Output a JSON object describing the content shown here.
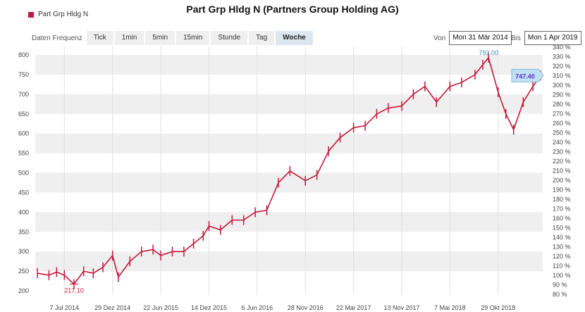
{
  "title": "Part Grp Hldg N (Partners Group Holding AG)",
  "legend": {
    "label": "Part Grp Hldg N"
  },
  "toolbar": {
    "label": "Daten Frequenz",
    "buttons": [
      "Tick",
      "1min",
      "5min",
      "15min",
      "Stunde",
      "Tag",
      "Woche"
    ],
    "active": "Woche"
  },
  "range": {
    "from_label": "Von",
    "from_value": "Mon 31 Mär 2014",
    "to_label": "Bis",
    "to_value": "Mon 1 Apr 2019"
  },
  "colors": {
    "series": "#c3173a",
    "max_label": "#3b8fc0",
    "min_label": "#c3173a",
    "last_box": "#bfe0f5",
    "last_text": "#5b2fc0"
  },
  "chart_data": {
    "type": "line",
    "x": [
      "2014-03-31",
      "2014-05-12",
      "2014-06-09",
      "2014-07-07",
      "2014-08-11",
      "2014-09-15",
      "2014-10-20",
      "2014-11-24",
      "2014-12-29",
      "2015-01-19",
      "2015-03-02",
      "2015-04-13",
      "2015-05-25",
      "2015-06-22",
      "2015-08-03",
      "2015-09-14",
      "2015-10-19",
      "2015-11-23",
      "2015-12-14",
      "2016-01-25",
      "2016-03-07",
      "2016-04-18",
      "2016-05-30",
      "2016-07-11",
      "2016-08-22",
      "2016-10-03",
      "2016-11-28",
      "2017-01-09",
      "2017-02-20",
      "2017-04-03",
      "2017-05-22",
      "2017-07-03",
      "2017-08-14",
      "2017-09-25",
      "2017-11-13",
      "2017-12-25",
      "2018-02-05",
      "2018-03-19",
      "2018-05-07",
      "2018-06-18",
      "2018-08-06",
      "2018-09-03",
      "2018-09-24",
      "2018-10-29",
      "2018-11-26",
      "2018-12-24",
      "2019-01-28",
      "2019-03-04",
      "2019-04-01"
    ],
    "values": [
      245,
      240,
      248,
      240,
      217.1,
      250,
      245,
      260,
      290,
      235,
      275,
      300,
      305,
      290,
      300,
      300,
      320,
      340,
      365,
      355,
      380,
      380,
      400,
      405,
      475,
      505,
      480,
      495,
      555,
      590,
      615,
      620,
      650,
      665,
      670,
      700,
      720,
      680,
      720,
      730,
      750,
      775,
      793,
      705,
      650,
      610,
      680,
      720,
      747.4
    ],
    "y_left": {
      "min": 200,
      "max": 800,
      "step": 50,
      "ticks": [
        "800",
        "750",
        "700",
        "650",
        "600",
        "550",
        "500",
        "450",
        "400",
        "350",
        "300",
        "250",
        "200"
      ]
    },
    "y_right": {
      "ticks": [
        "340 %",
        "330 %",
        "320 %",
        "310 %",
        "300 %",
        "290 %",
        "280 %",
        "270 %",
        "260 %",
        "250 %",
        "240 %",
        "230 %",
        "220 %",
        "210 %",
        "200 %",
        "190 %",
        "180 %",
        "170 %",
        "160 %",
        "150 %",
        "140 %",
        "130 %",
        "120 %",
        "110 %",
        "100 %",
        "90 %",
        "80 %"
      ]
    },
    "x_ticks": [
      "7 Jul 2014",
      "29 Dez 2014",
      "22 Jun 2015",
      "14 Dez 2015",
      "6 Jun 2016",
      "28 Nov 2016",
      "22 Mai 2017",
      "13 Nov 2017",
      "7 Mai 2018",
      "29 Okt 2018"
    ],
    "x_tick_dates": [
      "2014-07-07",
      "2014-12-29",
      "2015-06-22",
      "2015-12-14",
      "2016-06-06",
      "2016-11-28",
      "2017-05-22",
      "2017-11-13",
      "2018-05-07",
      "2018-10-29"
    ],
    "max_label": "793.00",
    "max_date": "2018-09-24",
    "min_label": "217.10",
    "min_date": "2014-08-11",
    "last_label": "747.40",
    "grid": true
  }
}
